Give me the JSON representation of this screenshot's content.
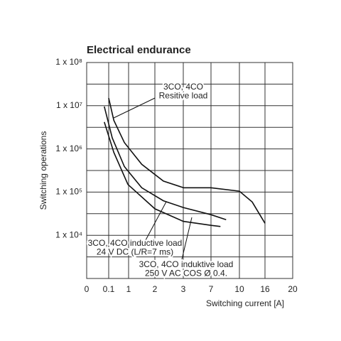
{
  "chart_data": {
    "type": "line",
    "title": "Electrical endurance",
    "xlabel": "Switching current [A]",
    "ylabel": "Switching operations",
    "log_y": true,
    "grid": true,
    "ylim": [
      1000,
      100000000
    ],
    "yticks": [
      {
        "value": 10000,
        "label": "1 x 10⁴"
      },
      {
        "value": 100000,
        "label": "1 x 10⁵"
      },
      {
        "value": 1000000,
        "label": "1 x 10⁶"
      },
      {
        "value": 10000000,
        "label": "1 x 10⁷"
      },
      {
        "value": 100000000,
        "label": "1 x 10⁸"
      }
    ],
    "minor_yticks": [
      3162,
      31623,
      316228,
      3162278,
      31622777
    ],
    "xlim": [
      0,
      20
    ],
    "xticks": [
      0,
      0.1,
      1,
      2,
      3,
      7,
      10,
      16,
      20
    ],
    "series": [
      {
        "color": "#111",
        "x": [
          0.1,
          0.33,
          0.81,
          1.5,
          2.3,
          3.05,
          7,
          10,
          13,
          16
        ],
        "values": [
          15000000,
          4600000,
          1400000,
          440000,
          180000,
          126000,
          126000,
          105000,
          59000,
          19000
        ]
      },
      {
        "color": "#111",
        "x": [
          0.08,
          0.26,
          0.81,
          1.5,
          2.3,
          3,
          7,
          8.6
        ],
        "values": [
          9600000,
          1800000,
          390000,
          126000,
          63000,
          44000,
          30000,
          23000
        ]
      },
      {
        "color": "#111",
        "x": [
          0.08,
          0.33,
          0.97,
          2,
          3,
          7,
          8
        ],
        "values": [
          4200000,
          830000,
          150000,
          41000,
          21000,
          17000,
          16000
        ]
      }
    ],
    "annotations": [
      {
        "lines": [
          "3CO, 4CO",
          "Resitive load"
        ]
      },
      {
        "lines": [
          "3CO, 4CO inductive load",
          "24 V DC (L/R=7 ms)"
        ]
      },
      {
        "lines": [
          "3CO, 4CO induktive load",
          "250 V AC COS Ø 0.4."
        ]
      }
    ]
  }
}
